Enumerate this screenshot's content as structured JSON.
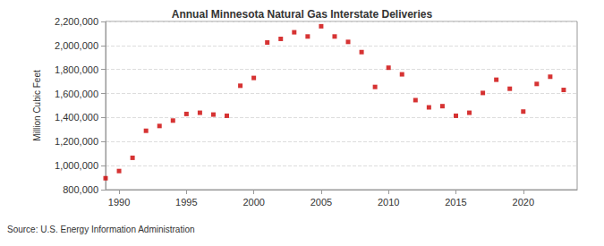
{
  "chart_data": {
    "type": "scatter",
    "title": "Annual Minnesota Natural Gas Interstate Deliveries",
    "y_label": "Million Cubic Feet",
    "annotations": [
      "Source: U.S. Energy Information Administration"
    ],
    "x": [
      1989,
      1990,
      1991,
      1992,
      1993,
      1994,
      1995,
      1996,
      1997,
      1998,
      1999,
      2000,
      2001,
      2002,
      2003,
      2004,
      2005,
      2006,
      2007,
      2008,
      2009,
      2010,
      2011,
      2012,
      2013,
      2014,
      2015,
      2016,
      2017,
      2018,
      2019,
      2020,
      2021,
      2022,
      2023
    ],
    "values": [
      895000,
      955000,
      1065000,
      1290000,
      1330000,
      1375000,
      1430000,
      1440000,
      1425000,
      1415000,
      1665000,
      1730000,
      2025000,
      2055000,
      2110000,
      2075000,
      2160000,
      2075000,
      2030000,
      1945000,
      1655000,
      1815000,
      1760000,
      1545000,
      1485000,
      1495000,
      1415000,
      1440000,
      1605000,
      1715000,
      1640000,
      1450000,
      1680000,
      1740000,
      1630000
    ],
    "color": "#cc0000",
    "marker": "square",
    "xlim": [
      1989,
      2024
    ],
    "xticks": [
      1990,
      1995,
      2000,
      2005,
      2010,
      2015,
      2020
    ],
    "ylim": [
      800000,
      2200000
    ],
    "yticks": [
      {
        "value": 800000,
        "label": "800,000"
      },
      {
        "value": 1000000,
        "label": "1,000,000"
      },
      {
        "value": 1200000,
        "label": "1,200,000"
      },
      {
        "value": 1400000,
        "label": "1,400,000"
      },
      {
        "value": 1600000,
        "label": "1,600,000"
      },
      {
        "value": 1800000,
        "label": "1,800,000"
      },
      {
        "value": 2000000,
        "label": "2,000,000"
      },
      {
        "value": 2200000,
        "label": "2,200,000"
      }
    ],
    "grid": true
  }
}
